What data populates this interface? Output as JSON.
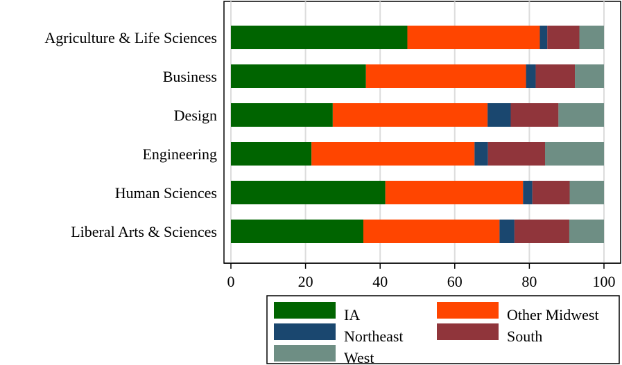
{
  "chart_data": {
    "type": "bar",
    "orientation": "horizontal",
    "stacked": true,
    "title": "",
    "xlabel": "",
    "ylabel": "",
    "xlim": [
      0,
      100
    ],
    "x_ticks": [
      0,
      20,
      40,
      60,
      80,
      100
    ],
    "grid": true,
    "legend_position": "bottom-right",
    "categories": [
      "Agriculture & Life Sciences",
      "Business",
      "Design",
      "Engineering",
      "Human Sciences",
      "Liberal Arts & Sciences"
    ],
    "series": [
      {
        "name": "IA",
        "color": "#006400",
        "values": [
          47.3,
          36.2,
          27.3,
          21.6,
          41.4,
          35.5
        ]
      },
      {
        "name": "Other Midwest",
        "color": "#FF4500",
        "values": [
          35.5,
          42.9,
          41.5,
          43.7,
          36.9,
          36.5
        ]
      },
      {
        "name": "Northeast",
        "color": "#1A476F",
        "values": [
          2.0,
          2.6,
          6.2,
          3.6,
          2.5,
          4.0
        ]
      },
      {
        "name": "South",
        "color": "#90353B",
        "values": [
          8.6,
          10.5,
          12.8,
          15.3,
          10.0,
          14.7
        ]
      },
      {
        "name": "West",
        "color": "#6E8E84",
        "values": [
          6.6,
          7.8,
          12.2,
          15.8,
          9.2,
          9.3
        ]
      }
    ]
  }
}
